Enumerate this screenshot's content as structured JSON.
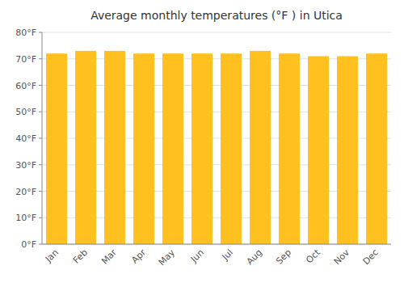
{
  "chart_data": {
    "type": "bar",
    "title": "Average monthly temperatures (°F ) in Utica",
    "categories": [
      "Jan",
      "Feb",
      "Mar",
      "Apr",
      "May",
      "Jun",
      "Jul",
      "Aug",
      "Sep",
      "Oct",
      "Nov",
      "Dec"
    ],
    "values": [
      72,
      73,
      73,
      72,
      72,
      72,
      72,
      73,
      72,
      71,
      71,
      72
    ],
    "color": "#FFC020",
    "ylim": [
      0,
      80
    ],
    "yticks": [
      {
        "value": 0,
        "label": "0°F"
      },
      {
        "value": 10,
        "label": "10°F"
      },
      {
        "value": 20,
        "label": "20°F"
      },
      {
        "value": 30,
        "label": "30°F"
      },
      {
        "value": 40,
        "label": "40°F"
      },
      {
        "value": 50,
        "label": "50°F"
      },
      {
        "value": 60,
        "label": "60°F"
      },
      {
        "value": 70,
        "label": "70°F"
      },
      {
        "value": 80,
        "label": "80°F"
      }
    ],
    "grid": true
  }
}
